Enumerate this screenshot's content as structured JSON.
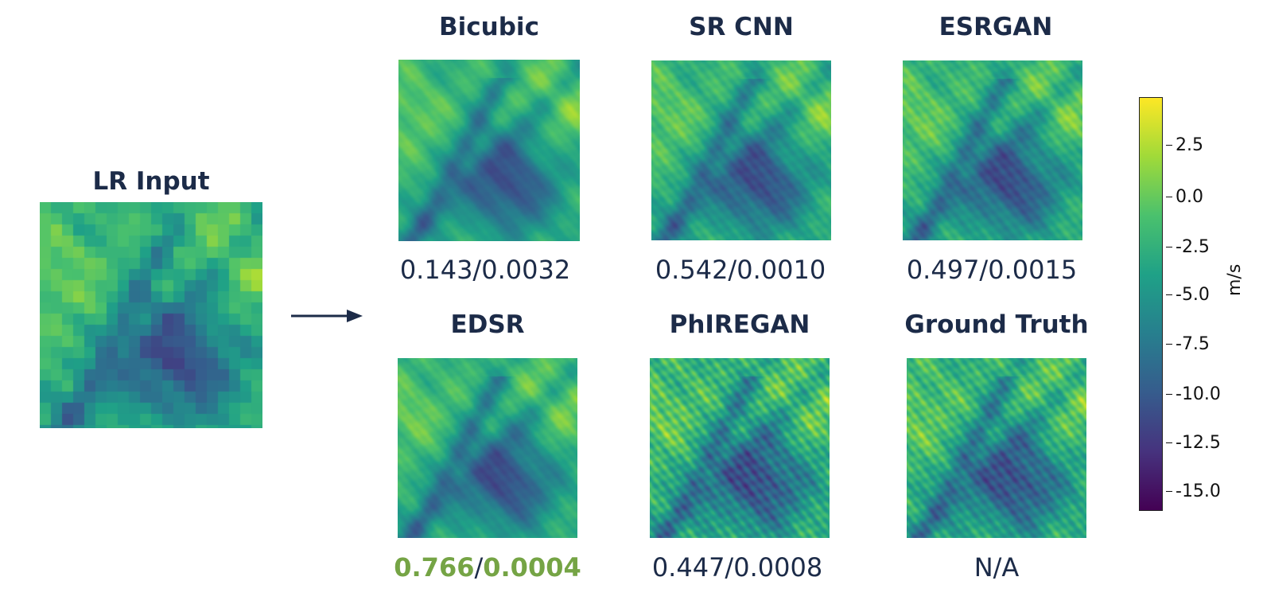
{
  "lr_input": {
    "title": "LR Input"
  },
  "arrow": {
    "label": ""
  },
  "panels": [
    {
      "title": "Bicubic",
      "score_a": "0.143",
      "score_b": "0.0032",
      "best": false
    },
    {
      "title": "SR CNN",
      "score_a": "0.542",
      "score_b": "0.0010",
      "best": false
    },
    {
      "title": "ESRGAN",
      "score_a": "0.497",
      "score_b": "0.0015",
      "best": false
    },
    {
      "title": "EDSR",
      "score_a": "0.766",
      "score_b": "0.0004",
      "best": true
    },
    {
      "title": "PhIREGAN",
      "score_a": "0.447",
      "score_b": "0.0008",
      "best": false
    },
    {
      "title": "Ground Truth",
      "score_text": "N/A",
      "best": false
    }
  ],
  "colorbar": {
    "unit": "m/s",
    "ticks": [
      "2.5",
      "0.0",
      "-2.5",
      "-5.0",
      "-7.5",
      "-10.0",
      "-12.5",
      "-15.0"
    ],
    "colors": {
      "low": "#440154",
      "mid": "#21918c",
      "high": "#fde725",
      "best_score": "#75a445",
      "text": "#1c2b48"
    }
  }
}
